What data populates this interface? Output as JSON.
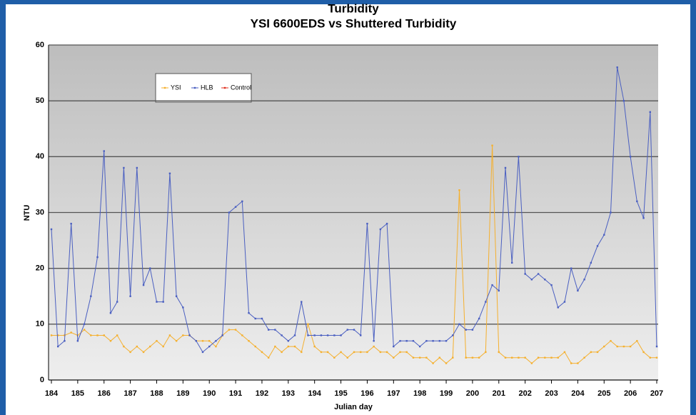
{
  "chart_data": {
    "type": "line",
    "title": "Turbidity",
    "subtitle": "YSI 6600EDS vs Shuttered Turbidity",
    "xlabel": "Julian day",
    "ylabel": "NTU",
    "x": [
      184,
      184.25,
      184.5,
      184.75,
      185,
      185.25,
      185.5,
      185.75,
      186,
      186.25,
      186.5,
      186.75,
      187,
      187.25,
      187.5,
      187.75,
      188,
      188.25,
      188.5,
      188.75,
      189,
      189.25,
      189.5,
      189.75,
      190,
      190.25,
      190.5,
      190.75,
      191,
      191.25,
      191.5,
      191.75,
      192,
      192.25,
      192.5,
      192.75,
      193,
      193.25,
      193.5,
      193.75,
      194,
      194.25,
      194.5,
      194.75,
      195,
      195.25,
      195.5,
      195.75,
      196,
      196.25,
      196.5,
      196.75,
      197,
      197.25,
      197.5,
      197.75,
      198,
      198.25,
      198.5,
      198.75,
      199,
      199.25,
      199.5,
      199.75,
      200,
      200.25,
      200.5,
      200.75,
      201,
      201.25,
      201.5,
      201.75,
      202,
      202.25,
      202.5,
      202.75,
      203,
      203.25,
      203.5,
      203.75,
      204,
      204.25,
      204.5,
      204.75,
      205,
      205.25,
      205.5,
      205.75,
      206,
      206.25,
      206.5,
      206.75,
      207
    ],
    "series": [
      {
        "name": "YSI",
        "color": "#f5b02e",
        "values": [
          8,
          8,
          8,
          8.5,
          8,
          9,
          8,
          8,
          8,
          7,
          8,
          6,
          5,
          6,
          5,
          6,
          7,
          6,
          8,
          7,
          8,
          8,
          7,
          7,
          7,
          6,
          8,
          9,
          9,
          8,
          7,
          6,
          5,
          4,
          6,
          5,
          6,
          6,
          5,
          10,
          6,
          5,
          5,
          4,
          5,
          4,
          5,
          5,
          5,
          6,
          5,
          5,
          4,
          5,
          5,
          4,
          4,
          4,
          3,
          4,
          3,
          4,
          34,
          4,
          4,
          4,
          5,
          42,
          5,
          4,
          4,
          4,
          4,
          3,
          4,
          4,
          4,
          4,
          5,
          3,
          3,
          4,
          5,
          5,
          6,
          7,
          6,
          6,
          6,
          7,
          5,
          4,
          4
        ]
      },
      {
        "name": "HLB",
        "color": "#4a5fc1",
        "values": [
          27,
          6,
          7,
          28,
          7,
          10,
          15,
          22,
          41,
          12,
          14,
          38,
          15,
          38,
          17,
          20,
          14,
          14,
          37,
          15,
          13,
          8,
          7,
          5,
          6,
          7,
          8,
          30,
          31,
          32,
          12,
          11,
          11,
          9,
          9,
          8,
          7,
          8,
          14,
          8,
          8,
          8,
          8,
          8,
          8,
          9,
          9,
          8,
          28,
          7,
          27,
          28,
          6,
          7,
          7,
          7,
          6,
          7,
          7,
          7,
          7,
          8,
          10,
          9,
          9,
          11,
          14,
          17,
          16,
          38,
          21,
          40,
          19,
          18,
          19,
          18,
          17,
          13,
          14,
          20,
          16,
          18,
          21,
          24,
          26,
          30,
          56,
          50,
          40,
          32,
          29,
          48,
          6
        ]
      },
      {
        "name": "Control",
        "color": "#e03020",
        "values": [
          null,
          null,
          null,
          null,
          null,
          null,
          null,
          null,
          null,
          null,
          null,
          null,
          null,
          null,
          null,
          null,
          null,
          null,
          null,
          null,
          null,
          null,
          null,
          null,
          null,
          null,
          null,
          null,
          null,
          null,
          null,
          null,
          null,
          null,
          null,
          null,
          null,
          null,
          null,
          null,
          null,
          null,
          null,
          null,
          null,
          null,
          null,
          null,
          null,
          null,
          null,
          null,
          null,
          null,
          null,
          null,
          null,
          null,
          null,
          null,
          null,
          null,
          null,
          null,
          null,
          null,
          null,
          null,
          null,
          null,
          null,
          null,
          null,
          null,
          null,
          null,
          null,
          null,
          null,
          null,
          null,
          null,
          null,
          null,
          null,
          null,
          null,
          null,
          null,
          null,
          null,
          null,
          null
        ]
      }
    ],
    "xlim": [
      184,
      207
    ],
    "xticks": [
      184,
      185,
      186,
      187,
      188,
      189,
      190,
      191,
      192,
      193,
      194,
      195,
      196,
      197,
      198,
      199,
      200,
      201,
      202,
      203,
      204,
      205,
      206,
      207
    ],
    "ylim": [
      0,
      60
    ],
    "yticks": [
      0,
      10,
      20,
      30,
      40,
      50,
      60
    ],
    "grid": true,
    "legend": "upper left"
  }
}
